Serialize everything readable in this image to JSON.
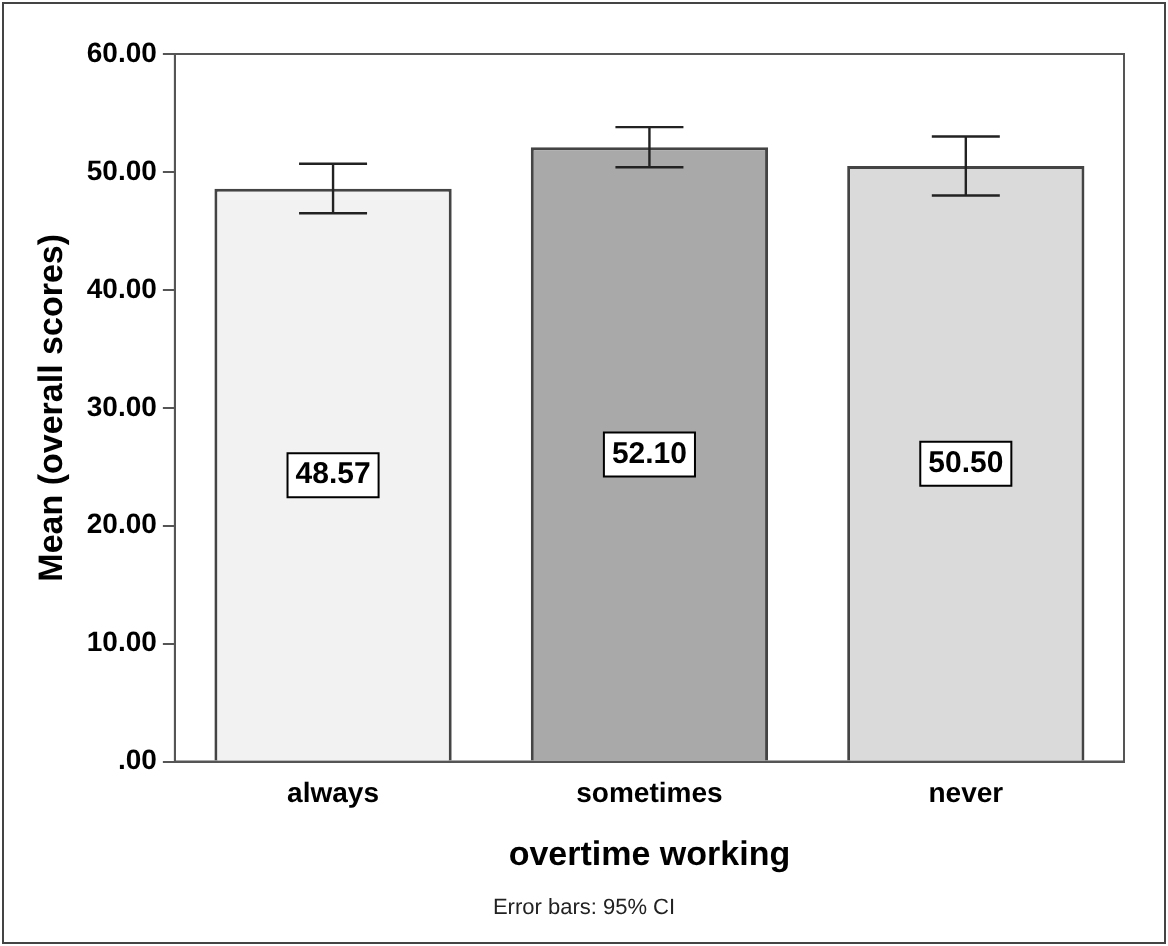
{
  "chart_data": {
    "type": "bar",
    "xlabel": "overtime working",
    "ylabel": "Mean (overall scores)",
    "categories": [
      "always",
      "sometimes",
      "never"
    ],
    "values": [
      48.57,
      52.1,
      50.5
    ],
    "colors": [
      "#f2f2f2",
      "#a9a9a9",
      "#dadada"
    ],
    "errors": [
      [
        46.5,
        50.7
      ],
      [
        50.4,
        53.8
      ],
      [
        48.0,
        53.0
      ]
    ],
    "ylim": [
      0,
      60
    ],
    "yticks": [
      {
        "value": 0,
        "label": ".00"
      },
      {
        "value": 10,
        "label": "10.00"
      },
      {
        "value": 20,
        "label": "20.00"
      },
      {
        "value": 30,
        "label": "30.00"
      },
      {
        "value": 40,
        "label": "40.00"
      },
      {
        "value": 50,
        "label": "50.00"
      },
      {
        "value": 60,
        "label": "60.00"
      }
    ],
    "value_labels": [
      "48.57",
      "52.10",
      "50.50"
    ],
    "grid": false,
    "legend": false,
    "annotations": [
      "Error bars: 95% CI"
    ]
  }
}
